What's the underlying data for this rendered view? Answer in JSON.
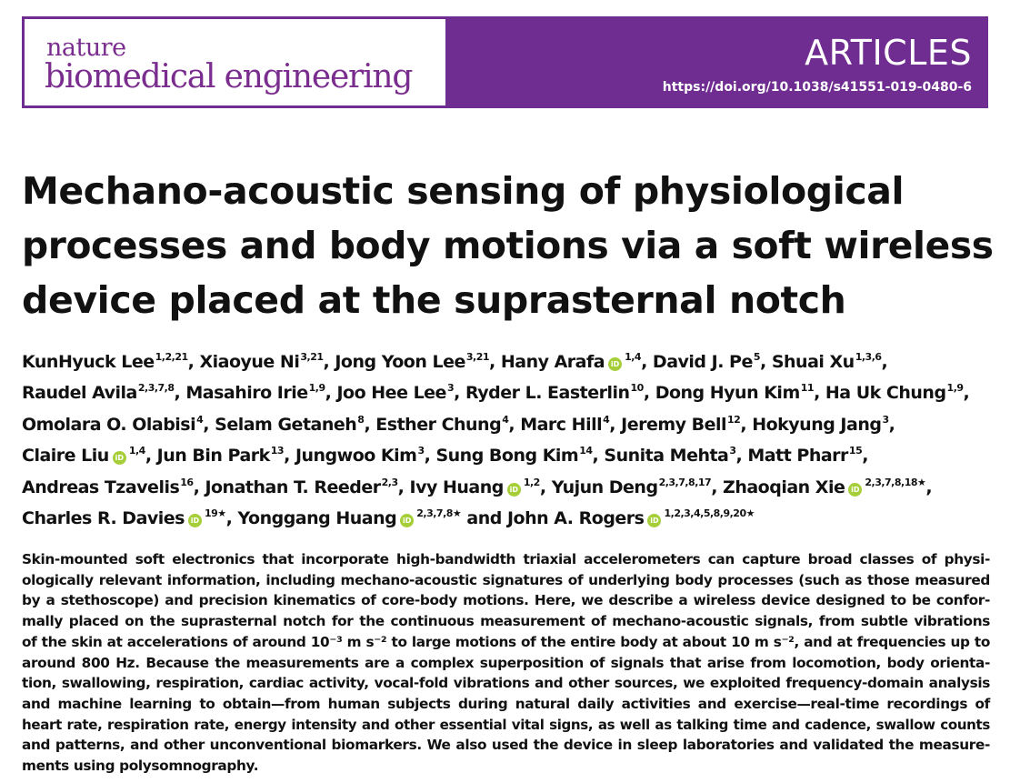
{
  "masthead": {
    "journal_line1": "nature",
    "journal_line2": "biomedical engineering",
    "section": "ARTICLES",
    "doi": "https://doi.org/10.1038/s41551-019-0480-6",
    "brand_color": "#6f2c91",
    "orcid_color": "#a6ce39"
  },
  "title_lines": [
    "Mechano-acoustic sensing of physiological",
    "processes and body motions via a soft wireless",
    "device placed at the suprasternal notch"
  ],
  "author_lines": [
    [
      {
        "name": "KunHyuck Lee",
        "sup": "1,2,21",
        "sep": ", "
      },
      {
        "name": "Xiaoyue Ni",
        "sup": "3,21",
        "sep": ", "
      },
      {
        "name": "Jong Yoon Lee",
        "sup": "3,21",
        "sep": ", "
      },
      {
        "name": "Hany Arafa",
        "orcid": true,
        "sup": "1,4",
        "sep": ", "
      },
      {
        "name": "David J. Pe",
        "sup": "5",
        "sep": ", "
      },
      {
        "name": "Shuai Xu",
        "sup": "1,3,6",
        "sep": ","
      }
    ],
    [
      {
        "name": "Raudel Avila",
        "sup": "2,3,7,8",
        "sep": ", "
      },
      {
        "name": "Masahiro Irie",
        "sup": "1,9",
        "sep": ", "
      },
      {
        "name": "Joo Hee Lee",
        "sup": "3",
        "sep": ", "
      },
      {
        "name": "Ryder L. Easterlin",
        "sup": "10",
        "sep": ", "
      },
      {
        "name": "Dong Hyun Kim",
        "sup": "11",
        "sep": ", "
      },
      {
        "name": "Ha Uk Chung",
        "sup": "1,9",
        "sep": ","
      }
    ],
    [
      {
        "name": "Omolara O. Olabisi",
        "sup": "4",
        "sep": ", "
      },
      {
        "name": "Selam Getaneh",
        "sup": "8",
        "sep": ", "
      },
      {
        "name": "Esther Chung",
        "sup": "4",
        "sep": ", "
      },
      {
        "name": "Marc Hill",
        "sup": "4",
        "sep": ", "
      },
      {
        "name": "Jeremy Bell",
        "sup": "12",
        "sep": ", "
      },
      {
        "name": "Hokyung Jang",
        "sup": "3",
        "sep": ","
      }
    ],
    [
      {
        "name": "Claire Liu",
        "orcid": true,
        "sup": "1,4",
        "sep": ", "
      },
      {
        "name": "Jun Bin Park",
        "sup": "13",
        "sep": ", "
      },
      {
        "name": "Jungwoo Kim",
        "sup": "3",
        "sep": ", "
      },
      {
        "name": "Sung Bong Kim",
        "sup": "14",
        "sep": ", "
      },
      {
        "name": "Sunita Mehta",
        "sup": "3",
        "sep": ", "
      },
      {
        "name": "Matt Pharr",
        "sup": "15",
        "sep": ","
      }
    ],
    [
      {
        "name": "Andreas Tzavelis",
        "sup": "16",
        "sep": ", "
      },
      {
        "name": "Jonathan T. Reeder",
        "sup": "2,3",
        "sep": ", "
      },
      {
        "name": "Ivy Huang",
        "orcid": true,
        "sup": "1,2",
        "sep": ", "
      },
      {
        "name": "Yujun Deng",
        "sup": "2,3,7,8,17",
        "sep": ", "
      },
      {
        "name": "Zhaoqian Xie",
        "orcid": true,
        "sup": "2,3,7,8,18★",
        "sep": ","
      }
    ],
    [
      {
        "name": "Charles R. Davies",
        "orcid": true,
        "sup": "19★",
        "sep": ", "
      },
      {
        "name": "Yonggang Huang",
        "orcid": true,
        "sup": "2,3,7,8★",
        "sep": " and "
      },
      {
        "name": "John A. Rogers",
        "orcid": true,
        "sup": "1,2,3,4,5,8,9,20★",
        "sep": ""
      }
    ]
  ],
  "abstract_lines": [
    "Skin-mounted soft electronics that incorporate high-bandwidth triaxial accelerometers can capture broad classes of physi-",
    "ologically relevant information, including mechano-acoustic signatures of underlying body processes (such as those measured",
    "by a stethoscope) and precision kinematics of core-body motions. Here, we describe a wireless device designed to be confor-",
    "mally placed on the suprasternal notch for the continuous measurement of mechano-acoustic signals, from subtle vibrations",
    "of the skin at accelerations of around 10⁻³ m s⁻² to large motions of the entire body at about 10 m s⁻², and at frequencies up to",
    "around 800 Hz. Because the measurements are a complex superposition of signals that arise from locomotion, body orienta-",
    "tion, swallowing, respiration, cardiac activity, vocal-fold vibrations and other sources, we exploited frequency-domain analysis",
    "and machine learning to obtain—from human subjects during natural daily activities and exercise—real-time recordings of",
    "heart rate, respiration rate, energy intensity and other essential vital signs, as well as talking time and cadence, swallow counts",
    "and patterns, and other unconventional biomarkers. We also used the device in sleep laboratories and validated the measure-",
    "ments using polysomnography."
  ]
}
